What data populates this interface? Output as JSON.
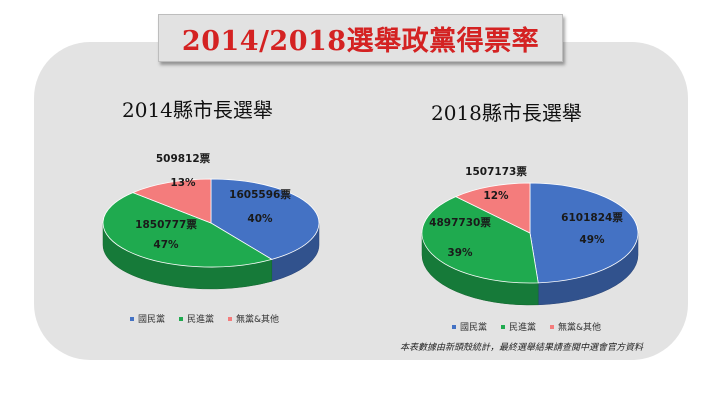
{
  "title": "2014/2018選舉政黨得票率",
  "note": "本表數據由新頭殼統計，最終選舉結果請查閱中選會官方資料",
  "colors": {
    "kmt": "#4472c4",
    "dpp": "#1faa4f",
    "other": "#f47c7c"
  },
  "legend": [
    "國民黨",
    "民進黨",
    "無黨&其他"
  ],
  "chart_data": [
    {
      "type": "pie",
      "title": "2014縣市長選舉",
      "categories": [
        "國民黨",
        "民進黨",
        "無黨&其他"
      ],
      "values": [
        1605596,
        1850777,
        509812
      ],
      "value_labels": [
        "1605596票",
        "1850777票",
        "509812票"
      ],
      "percent_labels": [
        "40%",
        "47%",
        "13%"
      ]
    },
    {
      "type": "pie",
      "title": "2018縣市長選舉",
      "categories": [
        "國民黨",
        "民進黨",
        "無黨&其他"
      ],
      "values": [
        6101824,
        4897730,
        1507173
      ],
      "value_labels": [
        "6101824票",
        "4897730票",
        "1507173票"
      ],
      "percent_labels": [
        "49%",
        "39%",
        "12%"
      ]
    }
  ]
}
